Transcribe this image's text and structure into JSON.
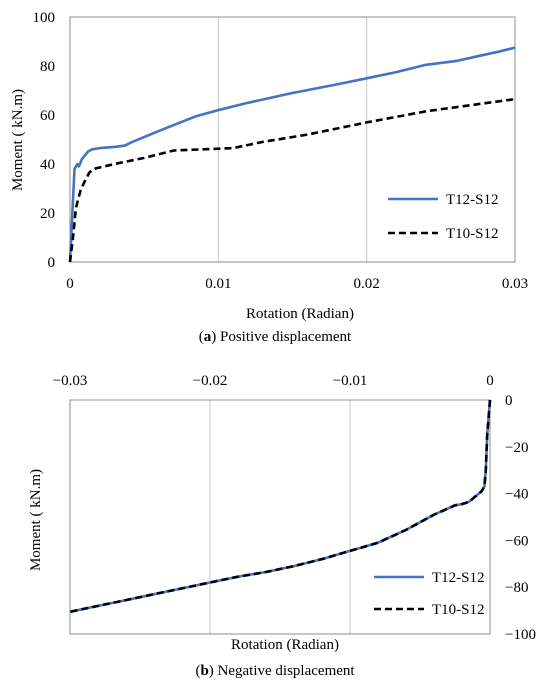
{
  "chart_data": [
    {
      "type": "line",
      "panel_label": "a",
      "caption": "Positive displacement",
      "xlabel": "Rotation (Radian)",
      "ylabel": "Moment ( kN.m)",
      "xlim": [
        0,
        0.03
      ],
      "ylim": [
        0,
        100
      ],
      "xticks": [
        0,
        0.01,
        0.02,
        0.03
      ],
      "xtick_labels": [
        "0",
        "0.01",
        "0.02",
        "0.03"
      ],
      "yticks": [
        0,
        20,
        40,
        60,
        80,
        100
      ],
      "ytick_labels": [
        "0",
        "20",
        "40",
        "60",
        "80",
        "100"
      ],
      "grid": "vertical",
      "legend_position": "bottom-right",
      "series": [
        {
          "name": "T12-S12",
          "color": "#4472C4",
          "dash": "solid",
          "x": [
            0,
            0.0003,
            0.0005,
            0.0006,
            0.0008,
            0.0012,
            0.0015,
            0.002,
            0.003,
            0.0037,
            0.0042,
            0.006,
            0.0085,
            0.01,
            0.012,
            0.015,
            0.018,
            0.02,
            0.022,
            0.024,
            0.026,
            0.0275,
            0.029,
            0.03
          ],
          "y": [
            0,
            38,
            40,
            39,
            42,
            45,
            46,
            46.5,
            47,
            47.5,
            49,
            53.5,
            59.5,
            62,
            65,
            69,
            72.5,
            75,
            77.5,
            80.5,
            82,
            84,
            86,
            87.5
          ]
        },
        {
          "name": "T10-S12",
          "color": "#000000",
          "dash": "dashed",
          "x": [
            0,
            0.0002,
            0.0004,
            0.0007,
            0.001,
            0.0013,
            0.0016,
            0.003,
            0.005,
            0.007,
            0.009,
            0.011,
            0.013,
            0.016,
            0.02,
            0.024,
            0.027,
            0.03
          ],
          "y": [
            0,
            10,
            22,
            29,
            33,
            36.5,
            38,
            40,
            42.5,
            45.5,
            46,
            46.5,
            49,
            52,
            57,
            61.5,
            64,
            66.5
          ]
        }
      ]
    },
    {
      "type": "line",
      "panel_label": "b",
      "caption": "Negative displacement",
      "xlabel": "Rotation (Radian)",
      "ylabel": "Moment ( kN.m)",
      "xlim": [
        -0.03,
        0
      ],
      "ylim": [
        -100,
        0
      ],
      "xticks": [
        -0.03,
        -0.02,
        -0.01,
        0
      ],
      "xtick_labels": [
        "−0.03",
        "−0.02",
        "−0.01",
        "0"
      ],
      "yticks": [
        0,
        -20,
        -40,
        -60,
        -80,
        -100
      ],
      "ytick_labels": [
        "0",
        "−20",
        "−40",
        "−60",
        "−80",
        "−100"
      ],
      "x_axis_labels_position": "top",
      "y_axis_labels_position": "right",
      "grid": "vertical",
      "legend_position": "bottom-right",
      "series": [
        {
          "name": "T12-S12",
          "color": "#4472C4",
          "dash": "solid",
          "x": [
            0,
            -0.0002,
            -0.0003,
            -0.0004,
            -0.0006,
            -0.001,
            -0.0015,
            -0.002,
            -0.0025,
            -0.004,
            -0.006,
            -0.008,
            -0.01,
            -0.012,
            -0.014,
            -0.016,
            -0.018,
            -0.02,
            -0.022,
            -0.024,
            -0.026,
            -0.028,
            -0.03
          ],
          "y": [
            0,
            -15,
            -30,
            -37,
            -39,
            -41,
            -43.5,
            -44.5,
            -45,
            -49,
            -55.5,
            -61,
            -64.5,
            -68,
            -71,
            -73.5,
            -75.5,
            -78,
            -80.5,
            -83,
            -85.5,
            -88,
            -90.5
          ]
        },
        {
          "name": "T10-S12",
          "color": "#000000",
          "dash": "dashed",
          "x": [
            0,
            -0.0002,
            -0.0003,
            -0.0004,
            -0.0006,
            -0.001,
            -0.0015,
            -0.002,
            -0.0025,
            -0.004,
            -0.006,
            -0.008,
            -0.01,
            -0.012,
            -0.014,
            -0.016,
            -0.018,
            -0.02,
            -0.022,
            -0.024,
            -0.026,
            -0.028,
            -0.03
          ],
          "y": [
            0,
            -15,
            -30,
            -37,
            -39,
            -41,
            -43.5,
            -44.5,
            -45,
            -49,
            -55.5,
            -61,
            -64.5,
            -68,
            -71,
            -73.5,
            -75.5,
            -78,
            -80.5,
            -83,
            -85.5,
            -88,
            -90.5
          ]
        }
      ]
    }
  ]
}
